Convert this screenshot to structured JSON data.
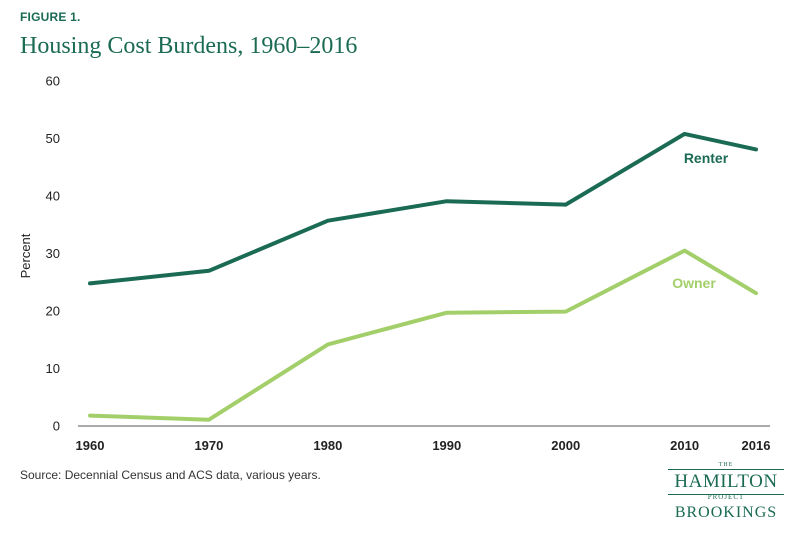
{
  "figure_label": "FIGURE 1.",
  "title": "Housing Cost Burdens, 1960–2016",
  "source": "Source: Decennial Census and ACS data, various years.",
  "logo": {
    "the": "THE",
    "hamilton": "HAMILTON",
    "project": "PROJECT",
    "brookings": "BROOKINGS"
  },
  "colors": {
    "renter": "#1b6b54",
    "owner": "#a3cf6a",
    "title": "#1b6b54"
  },
  "chart_data": {
    "type": "line",
    "title": "Housing Cost Burdens, 1960–2016",
    "xlabel": "",
    "ylabel": "Percent",
    "x": [
      1960,
      1970,
      1980,
      1990,
      2000,
      2010,
      2016
    ],
    "x_tick_labels": [
      "1960",
      "1970",
      "1980",
      "1990",
      "2000",
      "2010",
      "2016"
    ],
    "xlim": [
      1960,
      2016
    ],
    "ylim": [
      0,
      60
    ],
    "y_ticks": [
      0,
      10,
      20,
      30,
      40,
      50,
      60
    ],
    "grid": false,
    "series": [
      {
        "name": "Renter",
        "color": "#1b6b54",
        "values": [
          24.8,
          27.0,
          35.7,
          39.1,
          38.5,
          50.8,
          48.1
        ]
      },
      {
        "name": "Owner",
        "color": "#a3cf6a",
        "values": [
          1.8,
          1.1,
          14.2,
          19.7,
          19.9,
          30.5,
          23.1
        ]
      }
    ]
  }
}
